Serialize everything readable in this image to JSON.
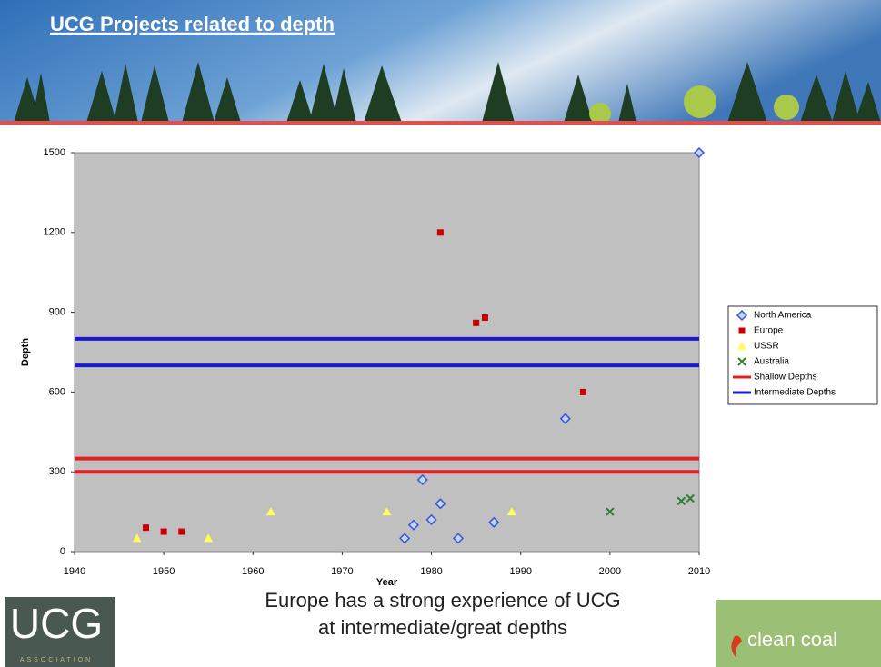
{
  "header": {
    "title": "UCG Projects related to depth"
  },
  "chart_data": {
    "type": "scatter",
    "xlabel": "Year",
    "ylabel": "Depth",
    "xlim": [
      1940,
      2010
    ],
    "ylim": [
      0,
      1500
    ],
    "xticks": [
      1940,
      1950,
      1960,
      1970,
      1980,
      1990,
      2000,
      2010
    ],
    "yticks": [
      0,
      300,
      600,
      900,
      1200,
      1500
    ],
    "plot_background": "#c0c0c0",
    "series": [
      {
        "name": "North America",
        "color": "#3355dd",
        "marker": "diamond",
        "x": [
          1977,
          1978,
          1979,
          1980,
          1981,
          1983,
          1987,
          1995,
          2010
        ],
        "values": [
          50,
          100,
          270,
          120,
          180,
          50,
          110,
          500,
          1500
        ]
      },
      {
        "name": "Europe",
        "color": "#cc0000",
        "marker": "square",
        "x": [
          1948,
          1950,
          1952,
          1981,
          1985,
          1986,
          1997
        ],
        "values": [
          90,
          75,
          75,
          1200,
          860,
          880,
          600
        ]
      },
      {
        "name": "USSR",
        "color": "#ffff55",
        "marker": "triangle",
        "x": [
          1947,
          1955,
          1962,
          1975,
          1989
        ],
        "values": [
          50,
          50,
          150,
          150,
          150
        ]
      },
      {
        "name": "Australia",
        "color": "#2e7d32",
        "marker": "x",
        "x": [
          2000,
          2008,
          2009
        ],
        "values": [
          150,
          190,
          200
        ]
      },
      {
        "name": "Shallow Depths",
        "color": "#e02020",
        "marker": "hline",
        "values": [
          300,
          350
        ]
      },
      {
        "name": "Intermediate Depths",
        "color": "#1a1acc",
        "marker": "hline",
        "values": [
          700,
          800
        ]
      }
    ]
  },
  "caption": [
    "Europe has a strong experience of UCG",
    "at intermediate/great depths"
  ],
  "logos": {
    "left": "UCG",
    "left_sub": "ASSOCIATION",
    "right": "clean coal"
  }
}
